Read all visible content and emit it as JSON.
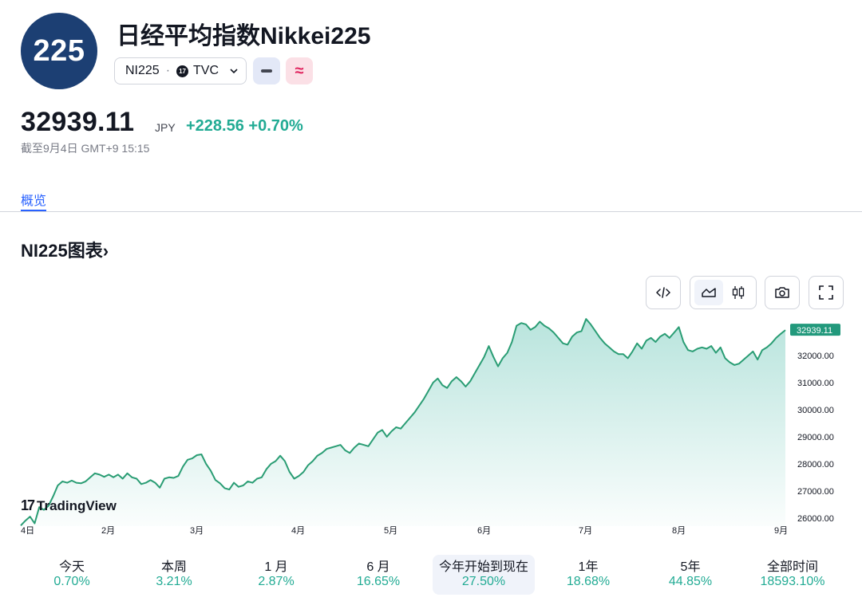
{
  "header": {
    "logo_text": "225",
    "title": "日经平均指数Nikkei225",
    "symbol": "NI225",
    "separator": "·",
    "exchange_badge": "17",
    "exchange": "TVC",
    "compare_icon": "minus-icon",
    "wave_icon": "approx-icon"
  },
  "quote": {
    "price": "32939.11",
    "currency": "JPY",
    "change": "+228.56 +0.70%",
    "as_of": "截至9月4日 GMT+9 15:15"
  },
  "tabs": [
    {
      "label": "概览",
      "active": true
    }
  ],
  "section_title": "NI225图表",
  "section_arrow": "›",
  "toolbar": {
    "embed_icon": "code-icon",
    "area_icon": "area-chart-icon",
    "candle_icon": "candlestick-icon",
    "snapshot_icon": "camera-icon",
    "fullscreen_icon": "fullscreen-icon"
  },
  "brand": {
    "logo_mark": "17",
    "name": "TradingView"
  },
  "colors": {
    "positive": "#22ab94",
    "accent": "#2962ff",
    "line": "#2a9d74"
  },
  "chart_data": {
    "type": "area",
    "x_labels": [
      "4日",
      "2月",
      "3月",
      "4月",
      "5月",
      "6月",
      "7月",
      "8月",
      "9月"
    ],
    "y_ticks": [
      "32000.00",
      "31000.00",
      "30000.00",
      "29000.00",
      "28000.00",
      "27000.00",
      "26000.00"
    ],
    "ylim": [
      25700,
      33500
    ],
    "last_value_label": "32939.11",
    "values": [
      25720,
      25900,
      26050,
      25800,
      26400,
      26300,
      26450,
      26800,
      27200,
      27350,
      27300,
      27380,
      27300,
      27280,
      27350,
      27500,
      27650,
      27600,
      27520,
      27600,
      27500,
      27600,
      27450,
      27650,
      27500,
      27450,
      27250,
      27300,
      27400,
      27300,
      27120,
      27450,
      27500,
      27480,
      27550,
      27900,
      28150,
      28200,
      28320,
      28350,
      28000,
      27750,
      27400,
      27280,
      27100,
      27050,
      27300,
      27150,
      27200,
      27350,
      27300,
      27450,
      27500,
      27800,
      28000,
      28100,
      28300,
      28100,
      27700,
      27450,
      27550,
      27700,
      27950,
      28100,
      28300,
      28400,
      28550,
      28600,
      28650,
      28700,
      28500,
      28400,
      28600,
      28750,
      28700,
      28650,
      28900,
      29150,
      29250,
      29000,
      29200,
      29350,
      29300,
      29500,
      29700,
      29900,
      30150,
      30400,
      30700,
      31000,
      31150,
      30900,
      30800,
      31050,
      31200,
      31050,
      30850,
      31050,
      31350,
      31650,
      31950,
      32350,
      31950,
      31600,
      31900,
      32100,
      32500,
      33100,
      33200,
      33150,
      32950,
      33050,
      33250,
      33100,
      33000,
      32850,
      32650,
      32450,
      32400,
      32700,
      32850,
      32900,
      33350,
      33150,
      32900,
      32650,
      32450,
      32300,
      32150,
      32050,
      32050,
      31900,
      32150,
      32450,
      32250,
      32550,
      32650,
      32500,
      32700,
      32800,
      32650,
      32850,
      33050,
      32500,
      32200,
      32150,
      32250,
      32300,
      32250,
      32350,
      32100,
      32300,
      31900,
      31750,
      31650,
      31700,
      31850,
      32000,
      32150,
      31850,
      32200,
      32300,
      32450,
      32650,
      32800,
      32939
    ]
  },
  "periods": [
    {
      "label": "今天",
      "value": "0.70%"
    },
    {
      "label": "本周",
      "value": "3.21%"
    },
    {
      "label": "1 月",
      "value": "2.87%"
    },
    {
      "label": "6 月",
      "value": "16.65%"
    },
    {
      "label": "今年开始到现在",
      "value": "27.50%",
      "active": true
    },
    {
      "label": "1年",
      "value": "18.68%"
    },
    {
      "label": "5年",
      "value": "44.85%"
    },
    {
      "label": "全部时间",
      "value": "18593.10%"
    }
  ]
}
